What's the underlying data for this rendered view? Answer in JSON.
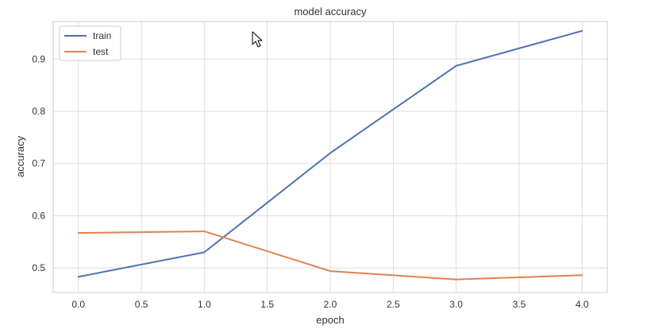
{
  "chart_data": {
    "type": "line",
    "title": "model accuracy",
    "xlabel": "epoch",
    "ylabel": "accuracy",
    "x": [
      0,
      1,
      2,
      3,
      4
    ],
    "xlim": [
      -0.2,
      4.2
    ],
    "ylim": [
      0.453,
      0.972
    ],
    "xticks": [
      0.0,
      0.5,
      1.0,
      1.5,
      2.0,
      2.5,
      3.0,
      3.5,
      4.0
    ],
    "xtick_labels": [
      "0.0",
      "0.5",
      "1.0",
      "1.5",
      "2.0",
      "2.5",
      "3.0",
      "3.5",
      "4.0"
    ],
    "yticks": [
      0.5,
      0.6,
      0.7,
      0.8,
      0.9
    ],
    "ytick_labels": [
      "0.5",
      "0.6",
      "0.7",
      "0.8",
      "0.9"
    ],
    "grid": true,
    "legend_position": "top-left",
    "series": [
      {
        "name": "train",
        "color": "#4c72b0",
        "values": [
          0.483,
          0.53,
          0.72,
          0.887,
          0.954
        ]
      },
      {
        "name": "test",
        "color": "#dd8452",
        "values": [
          0.567,
          0.57,
          0.494,
          0.478,
          0.486
        ]
      }
    ]
  }
}
